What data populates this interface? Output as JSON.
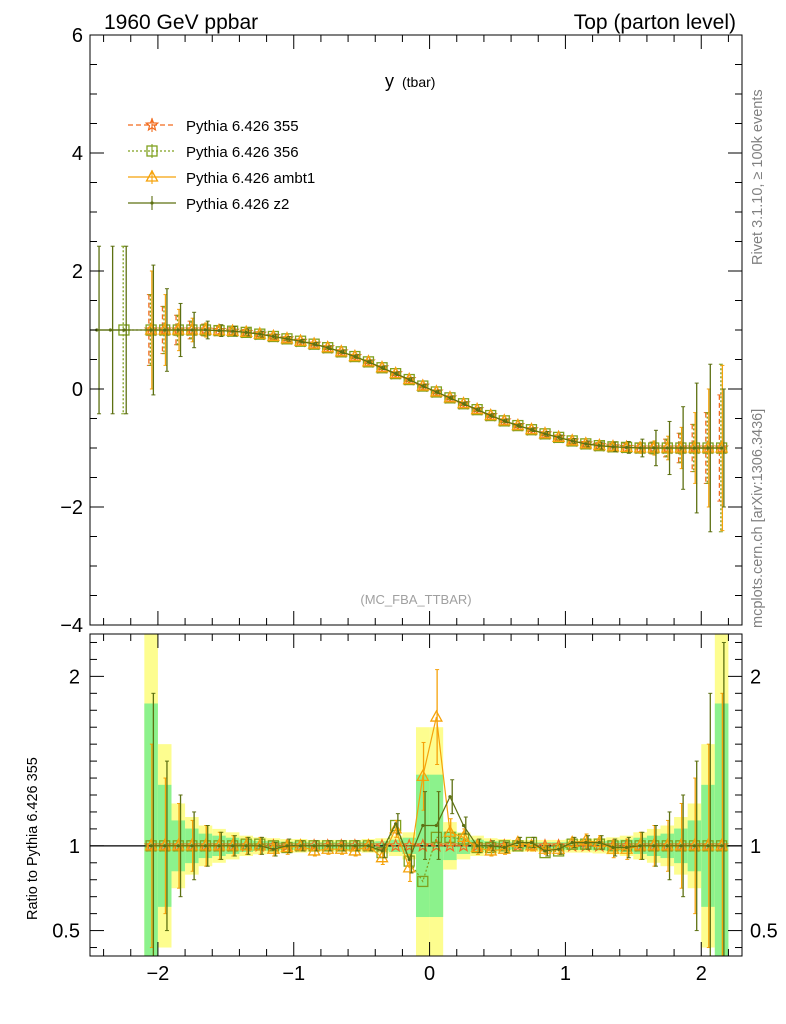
{
  "header": {
    "left": "1960 GeV ppbar",
    "right": "Top (parton level)"
  },
  "side_text": {
    "rivet": "Rivet 3.1.10, ≥ 100k events",
    "mcplots": "mcplots.cern.ch [arXiv:1306.3436]"
  },
  "chart_data": [
    {
      "panel": "main",
      "type": "line",
      "title": "y",
      "title_sub": "(tbar)",
      "analysis_label": "(MC_FBA_TTBAR)",
      "xlabel": "",
      "ylabel": "",
      "xlim": [
        -2.5,
        2.3
      ],
      "ylim": [
        -4,
        6
      ],
      "x_ticks": [
        -2,
        -1,
        0,
        1,
        2
      ],
      "x_tick_labels": [
        "−2",
        "−1",
        "0",
        "1",
        "2"
      ],
      "y_ticks": [
        -4,
        -2,
        0,
        2,
        4,
        6
      ],
      "y_tick_labels": [
        "−4",
        "−2",
        "0",
        "2",
        "4",
        "6"
      ],
      "legend": [
        "Pythia 6.426 355",
        "Pythia 6.426 356",
        "Pythia 6.426 ambt1",
        "Pythia 6.426 z2"
      ],
      "series": [
        {
          "name": "Pythia 6.426 355",
          "color": "#f26b1d",
          "marker": "star",
          "dash": "5,3",
          "x": [
            -2.05,
            -1.95,
            -1.85,
            -1.75,
            -1.65,
            -1.55,
            -1.45,
            -1.35,
            -1.25,
            -1.15,
            -1.05,
            -0.95,
            -0.85,
            -0.75,
            -0.65,
            -0.55,
            -0.45,
            -0.35,
            -0.25,
            -0.15,
            -0.05,
            0.05,
            0.15,
            0.25,
            0.35,
            0.45,
            0.55,
            0.65,
            0.75,
            0.85,
            0.95,
            1.05,
            1.15,
            1.25,
            1.35,
            1.45,
            1.55,
            1.65,
            1.75,
            1.85,
            1.95,
            2.05,
            2.15
          ],
          "y": [
            1.0,
            1.0,
            1.0,
            1.0,
            1.0,
            0.99,
            0.98,
            0.96,
            0.93,
            0.89,
            0.85,
            0.81,
            0.76,
            0.7,
            0.63,
            0.55,
            0.46,
            0.36,
            0.26,
            0.16,
            0.05,
            -0.05,
            -0.15,
            -0.25,
            -0.35,
            -0.45,
            -0.54,
            -0.62,
            -0.69,
            -0.76,
            -0.82,
            -0.88,
            -0.93,
            -0.96,
            -0.98,
            -0.99,
            -1.0,
            -1.0,
            -1.0,
            -1.0,
            -1.0,
            -1.0,
            -1.0
          ],
          "yerr": [
            0.6,
            0.4,
            0.25,
            0.15,
            0.1,
            0.08,
            0.06,
            0.05,
            0.04,
            0.04,
            0.03,
            0.03,
            0.03,
            0.03,
            0.03,
            0.03,
            0.03,
            0.03,
            0.03,
            0.03,
            0.03,
            0.03,
            0.03,
            0.03,
            0.03,
            0.03,
            0.03,
            0.03,
            0.03,
            0.03,
            0.04,
            0.04,
            0.04,
            0.05,
            0.06,
            0.07,
            0.08,
            0.1,
            0.15,
            0.25,
            0.4,
            0.6,
            0.9
          ]
        },
        {
          "name": "Pythia 6.426 356",
          "color": "#7fa01e",
          "marker": "square",
          "dash": "2,2",
          "x": [
            -2.25,
            -2.05,
            -1.95,
            -1.85,
            -1.75,
            -1.65,
            -1.55,
            -1.45,
            -1.35,
            -1.25,
            -1.15,
            -1.05,
            -0.95,
            -0.85,
            -0.75,
            -0.65,
            -0.55,
            -0.45,
            -0.35,
            -0.25,
            -0.15,
            -0.05,
            0.05,
            0.15,
            0.25,
            0.35,
            0.45,
            0.55,
            0.65,
            0.75,
            0.85,
            0.95,
            1.05,
            1.15,
            1.25,
            1.35,
            1.45,
            1.55,
            1.65,
            1.75,
            1.85,
            1.95,
            2.05,
            2.15
          ],
          "y": [
            1.0,
            1.0,
            1.0,
            1.0,
            1.0,
            1.0,
            0.99,
            0.98,
            0.96,
            0.93,
            0.89,
            0.85,
            0.81,
            0.76,
            0.7,
            0.63,
            0.55,
            0.46,
            0.36,
            0.26,
            0.16,
            0.05,
            -0.05,
            -0.15,
            -0.25,
            -0.35,
            -0.45,
            -0.54,
            -0.62,
            -0.69,
            -0.76,
            -0.82,
            -0.88,
            -0.93,
            -0.96,
            -0.98,
            -0.99,
            -1.0,
            -1.0,
            -1.0,
            -1.0,
            -1.0,
            -1.0,
            -1.0
          ],
          "yerr": [
            1.42,
            0.6,
            0.4,
            0.25,
            0.15,
            0.1,
            0.08,
            0.06,
            0.05,
            0.04,
            0.04,
            0.03,
            0.03,
            0.03,
            0.03,
            0.03,
            0.03,
            0.03,
            0.03,
            0.03,
            0.03,
            0.03,
            0.03,
            0.03,
            0.03,
            0.03,
            0.03,
            0.03,
            0.03,
            0.03,
            0.03,
            0.04,
            0.04,
            0.04,
            0.05,
            0.06,
            0.07,
            0.08,
            0.1,
            0.15,
            0.25,
            0.4,
            0.6,
            1.42
          ]
        },
        {
          "name": "Pythia 6.426 ambt1",
          "color": "#f5a20a",
          "marker": "triangle",
          "dash": "",
          "x": [
            -2.05,
            -1.95,
            -1.85,
            -1.75,
            -1.65,
            -1.55,
            -1.45,
            -1.35,
            -1.25,
            -1.15,
            -1.05,
            -0.95,
            -0.85,
            -0.75,
            -0.65,
            -0.55,
            -0.45,
            -0.35,
            -0.25,
            -0.15,
            -0.05,
            0.05,
            0.15,
            0.25,
            0.35,
            0.45,
            0.55,
            0.65,
            0.75,
            0.85,
            0.95,
            1.05,
            1.15,
            1.25,
            1.35,
            1.45,
            1.55,
            1.65,
            1.75,
            1.85,
            1.95,
            2.05,
            2.15
          ],
          "y": [
            1.0,
            1.0,
            1.0,
            1.0,
            1.0,
            0.99,
            0.98,
            0.96,
            0.93,
            0.89,
            0.85,
            0.81,
            0.76,
            0.7,
            0.63,
            0.55,
            0.46,
            0.36,
            0.26,
            0.16,
            0.05,
            -0.05,
            -0.15,
            -0.25,
            -0.35,
            -0.45,
            -0.54,
            -0.62,
            -0.69,
            -0.76,
            -0.82,
            -0.88,
            -0.93,
            -0.96,
            -0.98,
            -0.99,
            -1.0,
            -1.0,
            -1.0,
            -1.0,
            -1.0,
            -1.0,
            -1.0
          ],
          "yerr": [
            1.0,
            0.6,
            0.35,
            0.2,
            0.12,
            0.09,
            0.07,
            0.06,
            0.05,
            0.04,
            0.04,
            0.03,
            0.03,
            0.03,
            0.03,
            0.03,
            0.03,
            0.03,
            0.03,
            0.03,
            0.03,
            0.03,
            0.03,
            0.03,
            0.03,
            0.03,
            0.03,
            0.03,
            0.03,
            0.03,
            0.04,
            0.04,
            0.04,
            0.05,
            0.06,
            0.07,
            0.09,
            0.12,
            0.2,
            0.35,
            0.6,
            1.0,
            1.4
          ]
        },
        {
          "name": "Pythia 6.426 z2",
          "color": "#5d7012",
          "marker": "dot",
          "dash": "",
          "x": [
            -2.45,
            -2.35,
            -2.25,
            -2.05,
            -1.95,
            -1.85,
            -1.75,
            -1.65,
            -1.55,
            -1.45,
            -1.35,
            -1.25,
            -1.15,
            -1.05,
            -0.95,
            -0.85,
            -0.75,
            -0.65,
            -0.55,
            -0.45,
            -0.35,
            -0.25,
            -0.15,
            -0.05,
            0.05,
            0.15,
            0.25,
            0.35,
            0.45,
            0.55,
            0.65,
            0.75,
            0.85,
            0.95,
            1.05,
            1.15,
            1.25,
            1.35,
            1.45,
            1.55,
            1.65,
            1.75,
            1.85,
            1.95,
            2.05,
            2.15
          ],
          "y": [
            1.0,
            1.0,
            1.0,
            1.0,
            1.0,
            1.0,
            1.0,
            1.0,
            0.99,
            0.98,
            0.96,
            0.93,
            0.89,
            0.85,
            0.81,
            0.76,
            0.7,
            0.63,
            0.55,
            0.46,
            0.36,
            0.26,
            0.16,
            0.05,
            -0.05,
            -0.15,
            -0.25,
            -0.35,
            -0.45,
            -0.54,
            -0.62,
            -0.69,
            -0.76,
            -0.82,
            -0.88,
            -0.93,
            -0.96,
            -0.98,
            -0.99,
            -1.0,
            -1.0,
            -1.0,
            -1.0,
            -1.0,
            -1.0,
            -1.0
          ],
          "yerr": [
            1.42,
            1.42,
            1.42,
            1.1,
            0.7,
            0.45,
            0.3,
            0.15,
            0.1,
            0.08,
            0.06,
            0.05,
            0.04,
            0.04,
            0.03,
            0.03,
            0.03,
            0.03,
            0.03,
            0.03,
            0.03,
            0.03,
            0.03,
            0.03,
            0.03,
            0.03,
            0.03,
            0.03,
            0.03,
            0.03,
            0.03,
            0.03,
            0.04,
            0.04,
            0.04,
            0.05,
            0.06,
            0.08,
            0.1,
            0.15,
            0.3,
            0.45,
            0.7,
            1.1,
            1.42,
            1.0
          ]
        }
      ]
    },
    {
      "panel": "ratio",
      "type": "line",
      "ylabel": "Ratio to Pythia 6.426 355",
      "xlim": [
        -2.5,
        2.3
      ],
      "ylim": [
        0.35,
        2.25
      ],
      "x_ticks": [
        -2,
        -1,
        0,
        1,
        2
      ],
      "x_tick_labels": [
        "−2",
        "−1",
        "0",
        "1",
        "2"
      ],
      "y_ticks": [
        0.5,
        1,
        2
      ],
      "y_tick_labels": [
        "0.5",
        "1",
        "2"
      ],
      "reference_line": 1,
      "band_x": [
        -2.05,
        -1.95,
        -1.85,
        -1.75,
        -1.65,
        -1.55,
        -1.45,
        -1.35,
        -1.25,
        -1.15,
        -1.05,
        -0.95,
        -0.85,
        -0.75,
        -0.65,
        -0.55,
        -0.45,
        -0.35,
        -0.25,
        -0.15,
        -0.05,
        0.05,
        0.15,
        0.25,
        0.35,
        0.45,
        0.55,
        0.65,
        0.75,
        0.85,
        0.95,
        1.05,
        1.15,
        1.25,
        1.35,
        1.45,
        1.55,
        1.65,
        1.75,
        1.85,
        1.95,
        2.05,
        2.15
      ],
      "band_halfwidth": [
        1.4,
        0.6,
        0.25,
        0.17,
        0.12,
        0.1,
        0.08,
        0.06,
        0.05,
        0.045,
        0.04,
        0.04,
        0.035,
        0.035,
        0.035,
        0.035,
        0.04,
        0.045,
        0.06,
        0.08,
        0.7,
        0.7,
        0.14,
        0.08,
        0.06,
        0.045,
        0.04,
        0.035,
        0.035,
        0.035,
        0.035,
        0.04,
        0.04,
        0.045,
        0.05,
        0.06,
        0.08,
        0.1,
        0.12,
        0.17,
        0.25,
        0.6,
        1.4
      ],
      "series": [
        {
          "name": "Pythia 6.426 355",
          "color": "#f26b1d",
          "y": [
            1,
            1,
            1,
            1,
            1,
            1,
            1,
            1,
            1,
            1,
            1,
            1,
            1,
            1,
            1,
            1,
            1,
            1,
            1,
            1,
            1,
            1,
            1,
            1,
            1,
            1,
            1,
            1,
            1,
            1,
            1,
            1,
            1,
            1,
            1,
            1,
            1,
            1,
            1,
            1,
            1,
            1,
            1
          ]
        },
        {
          "name": "Pythia 6.426 356",
          "color": "#7fa01e",
          "y": [
            1.0,
            1.0,
            1.0,
            1.0,
            1.0,
            1.0,
            1.0,
            1.01,
            1.01,
            1.0,
            0.99,
            1.0,
            1.0,
            1.0,
            1.0,
            1.0,
            1.0,
            0.96,
            1.12,
            0.91,
            0.79,
            1.05,
            1.05,
            1.04,
            0.99,
            0.99,
            1.0,
            1.0,
            1.02,
            0.96,
            0.97,
            1.01,
            1.01,
            1.01,
            1.0,
            1.0,
            1.0,
            1.0,
            1.0,
            1.0,
            1.0,
            1.0,
            1.0
          ]
        },
        {
          "name": "Pythia 6.426 ambt1",
          "color": "#f5a20a",
          "y": [
            1.0,
            1.0,
            1.0,
            1.0,
            1.0,
            1.0,
            1.0,
            1.0,
            1.0,
            0.98,
            0.99,
            1.0,
            0.97,
            0.98,
            0.98,
            0.97,
            1.0,
            0.93,
            1.1,
            0.87,
            1.41,
            1.76,
            1.08,
            1.05,
            0.99,
            0.97,
            0.98,
            1.02,
            1.0,
            0.98,
            0.98,
            1.02,
            1.03,
            1.02,
            0.98,
            0.98,
            1.0,
            1.0,
            1.0,
            1.0,
            1.0,
            1.0,
            1.0
          ]
        },
        {
          "name": "Pythia 6.426 z2",
          "color": "#5d7012",
          "y": [
            1.0,
            1.0,
            1.0,
            1.0,
            1.0,
            1.0,
            1.0,
            1.0,
            1.0,
            0.98,
            1.0,
            1.0,
            1.0,
            1.0,
            1.0,
            1.0,
            1.0,
            0.97,
            1.13,
            0.92,
            1.12,
            1.12,
            1.29,
            1.12,
            1.0,
            1.0,
            0.99,
            1.02,
            1.02,
            0.97,
            0.98,
            1.02,
            1.02,
            1.02,
            0.99,
            0.99,
            1.0,
            1.0,
            1.0,
            1.0,
            1.0,
            1.0,
            1.0
          ]
        }
      ],
      "errors": {
        "Pythia 6.426 ambt1": [
          0.6,
          0.4,
          0.25,
          0.15,
          0.12,
          0.08,
          0.06,
          0.05,
          0.05,
          0.04,
          0.04,
          0.03,
          0.03,
          0.03,
          0.03,
          0.03,
          0.03,
          0.04,
          0.05,
          0.08,
          0.2,
          0.28,
          0.08,
          0.05,
          0.04,
          0.03,
          0.03,
          0.03,
          0.03,
          0.03,
          0.03,
          0.03,
          0.04,
          0.04,
          0.05,
          0.06,
          0.08,
          0.12,
          0.15,
          0.25,
          0.4,
          0.6,
          0.9
        ],
        "Pythia 6.426 z2": [
          0.9,
          0.5,
          0.3,
          0.2,
          0.12,
          0.08,
          0.06,
          0.05,
          0.05,
          0.04,
          0.04,
          0.03,
          0.03,
          0.03,
          0.03,
          0.03,
          0.03,
          0.04,
          0.06,
          0.08,
          0.2,
          0.2,
          0.1,
          0.05,
          0.04,
          0.03,
          0.03,
          0.03,
          0.03,
          0.03,
          0.03,
          0.03,
          0.04,
          0.04,
          0.05,
          0.06,
          0.08,
          0.12,
          0.2,
          0.3,
          0.5,
          0.9,
          1.2
        ]
      }
    }
  ]
}
